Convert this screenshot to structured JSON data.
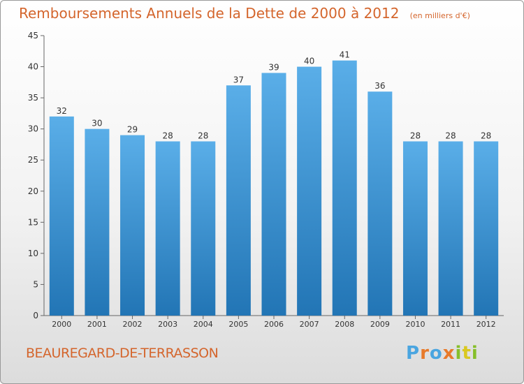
{
  "header": {
    "title": "Remboursements Annuels de la Dette de 2000 à 2012",
    "unit": "(en milliers d'€)"
  },
  "footer": {
    "location": "BEAUREGARD-DE-TERRASSON",
    "logo_text": "Proxiti"
  },
  "colors": {
    "accent": "#d4652c",
    "bar_top": "#5aaee8",
    "bar_bottom": "#2275b5"
  },
  "chart_data": {
    "type": "bar",
    "title": "Remboursements Annuels de la Dette de 2000 à 2012",
    "categories": [
      "2000",
      "2001",
      "2002",
      "2003",
      "2004",
      "2005",
      "2006",
      "2007",
      "2008",
      "2009",
      "2010",
      "2011",
      "2012"
    ],
    "values": [
      32,
      30,
      29,
      28,
      28,
      37,
      39,
      40,
      41,
      36,
      28,
      28,
      28
    ],
    "ylim": [
      0,
      45
    ],
    "yticks": [
      0,
      5,
      10,
      15,
      20,
      25,
      30,
      35,
      40,
      45
    ],
    "grid": false,
    "data_labels": true
  }
}
